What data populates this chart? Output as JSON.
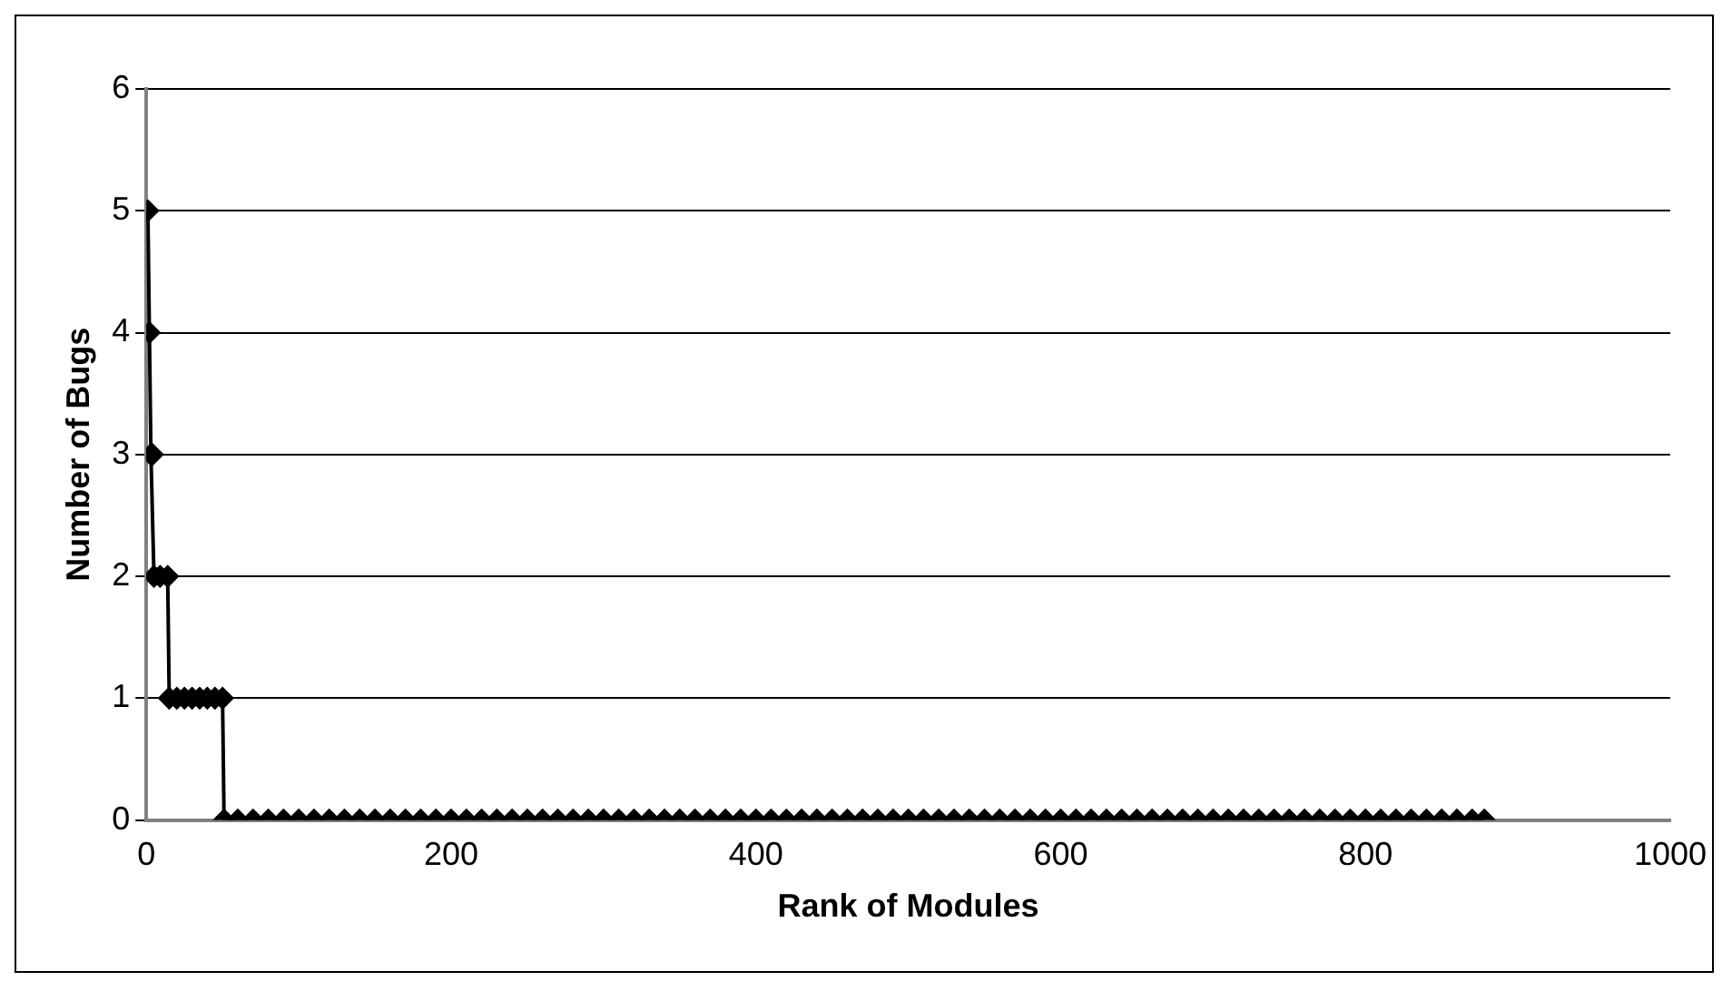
{
  "chart_data": {
    "type": "line",
    "xlabel": "Rank of Modules",
    "ylabel": "Number of Bugs",
    "series": [
      {
        "color": "#000000",
        "x": [
          1,
          2,
          3,
          4,
          5,
          9,
          14,
          15,
          20,
          25,
          30,
          35,
          40,
          45,
          50,
          51,
          60,
          70,
          80,
          90,
          100,
          110,
          120,
          130,
          140,
          150,
          160,
          170,
          180,
          190,
          200,
          210,
          220,
          230,
          240,
          250,
          260,
          270,
          280,
          290,
          300,
          310,
          320,
          330,
          340,
          350,
          360,
          370,
          380,
          390,
          400,
          410,
          420,
          430,
          440,
          450,
          460,
          470,
          480,
          490,
          500,
          510,
          520,
          530,
          540,
          550,
          560,
          570,
          580,
          590,
          600,
          610,
          620,
          630,
          640,
          650,
          660,
          670,
          680,
          690,
          700,
          710,
          720,
          730,
          740,
          750,
          760,
          770,
          780,
          790,
          800,
          810,
          820,
          830,
          840,
          850,
          860,
          870,
          878
        ],
        "values": [
          5,
          4,
          3,
          3,
          2,
          2,
          2,
          1,
          1,
          1,
          1,
          1,
          1,
          1,
          1,
          0,
          0,
          0,
          0,
          0,
          0,
          0,
          0,
          0,
          0,
          0,
          0,
          0,
          0,
          0,
          0,
          0,
          0,
          0,
          0,
          0,
          0,
          0,
          0,
          0,
          0,
          0,
          0,
          0,
          0,
          0,
          0,
          0,
          0,
          0,
          0,
          0,
          0,
          0,
          0,
          0,
          0,
          0,
          0,
          0,
          0,
          0,
          0,
          0,
          0,
          0,
          0,
          0,
          0,
          0,
          0,
          0,
          0,
          0,
          0,
          0,
          0,
          0,
          0,
          0,
          0,
          0,
          0,
          0,
          0,
          0,
          0,
          0,
          0,
          0,
          0,
          0,
          0,
          0,
          0,
          0,
          0,
          0,
          0
        ]
      }
    ],
    "xlim": [
      0,
      1000
    ],
    "xticks": [
      0,
      200,
      400,
      600,
      800,
      {
        "value": 1000,
        "label": "1000"
      }
    ],
    "ylim": [
      0,
      6
    ],
    "yticks": [
      0,
      1,
      2,
      3,
      4,
      5,
      6
    ],
    "grid": "y",
    "legend": false,
    "marker": "diamond",
    "line_style": "solid"
  }
}
